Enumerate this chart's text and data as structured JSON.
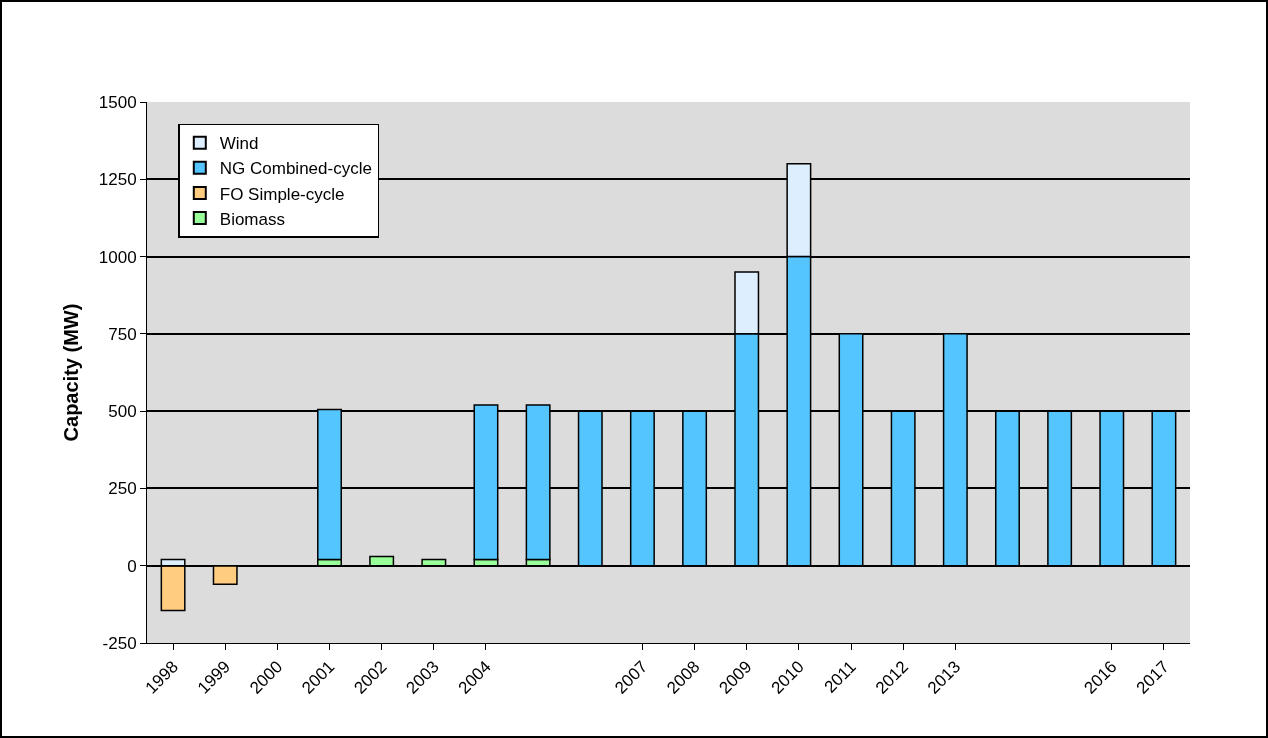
{
  "chart_data": {
    "type": "bar",
    "stacked": true,
    "ylabel": "Capacity (MW)",
    "categories": [
      "1998",
      "1999",
      "2000",
      "2001",
      "2002",
      "2003",
      "2004",
      null,
      null,
      "2007",
      "2008",
      "2009",
      "2010",
      "2011",
      "2012",
      "2013",
      null,
      null,
      "2016",
      "2017"
    ],
    "series": [
      {
        "name": "Biomass",
        "color": "#99ff99",
        "values": [
          null,
          null,
          null,
          20,
          30,
          20,
          20,
          20,
          null,
          null,
          null,
          null,
          null,
          null,
          null,
          null,
          null,
          null,
          null,
          null
        ]
      },
      {
        "name": "FO Simple-cycle",
        "color": "#ffcc80",
        "values": [
          -145,
          -60,
          null,
          null,
          null,
          null,
          null,
          null,
          null,
          null,
          null,
          null,
          null,
          null,
          null,
          null,
          null,
          null,
          null,
          null
        ]
      },
      {
        "name": "NG Combined-cycle",
        "color": "#55c5ff",
        "values": [
          null,
          null,
          null,
          485,
          null,
          null,
          500,
          500,
          500,
          500,
          500,
          750,
          1000,
          750,
          500,
          750,
          500,
          500,
          500,
          500
        ]
      },
      {
        "name": "Wind",
        "color": "#ddeeff",
        "values": [
          20,
          null,
          null,
          null,
          null,
          null,
          null,
          null,
          null,
          null,
          null,
          200,
          300,
          null,
          null,
          null,
          null,
          null,
          null,
          null
        ]
      }
    ],
    "ylim": [
      -250,
      1500
    ],
    "yticks": [
      -250,
      0,
      250,
      500,
      750,
      1000,
      1250,
      1500
    ],
    "grid": "y",
    "legend": "top left"
  }
}
